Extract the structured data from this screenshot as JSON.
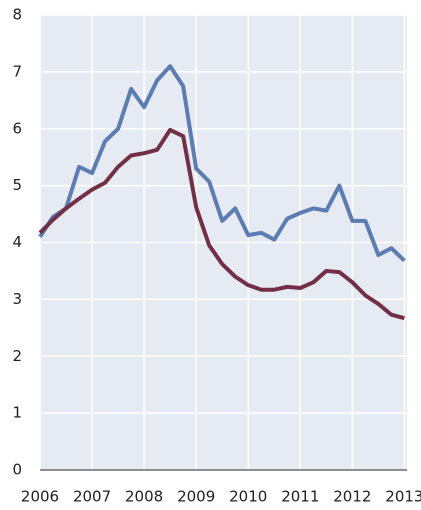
{
  "chart_data": {
    "type": "line",
    "x": [
      2006,
      2006.25,
      2006.5,
      2006.75,
      2007,
      2007.25,
      2007.5,
      2007.75,
      2008,
      2008.25,
      2008.5,
      2008.75,
      2009,
      2009.25,
      2009.5,
      2009.75,
      2010,
      2010.25,
      2010.5,
      2010.75,
      2011,
      2011.25,
      2011.5,
      2011.75,
      2012,
      2012.25,
      2012.5,
      2012.75,
      2013
    ],
    "series": [
      {
        "color": "#5b7db1",
        "values": [
          4.1,
          4.45,
          4.6,
          5.33,
          5.22,
          5.78,
          6.0,
          6.7,
          6.38,
          6.85,
          7.1,
          6.75,
          5.3,
          5.07,
          4.38,
          4.6,
          4.13,
          4.17,
          4.05,
          4.42,
          4.52,
          4.6,
          4.56,
          5.0,
          4.38,
          4.38,
          3.78,
          3.9,
          3.68
        ]
      },
      {
        "color": "#722f45",
        "values": [
          4.17,
          4.4,
          4.6,
          4.77,
          4.93,
          5.05,
          5.33,
          5.53,
          5.57,
          5.63,
          5.98,
          5.87,
          4.62,
          3.95,
          3.62,
          3.4,
          3.25,
          3.17,
          3.17,
          3.22,
          3.2,
          3.3,
          3.5,
          3.48,
          3.3,
          3.07,
          2.92,
          2.73,
          2.67
        ]
      }
    ],
    "xlim": [
      2006,
      2013.05
    ],
    "xticks": [
      2006,
      2007,
      2008,
      2009,
      2010,
      2011,
      2012,
      2013
    ],
    "ylim": [
      0,
      8
    ],
    "yticks": [
      0,
      1,
      2,
      3,
      4,
      5,
      6,
      7,
      8
    ],
    "grid": true,
    "background": "#e6eaf2"
  }
}
